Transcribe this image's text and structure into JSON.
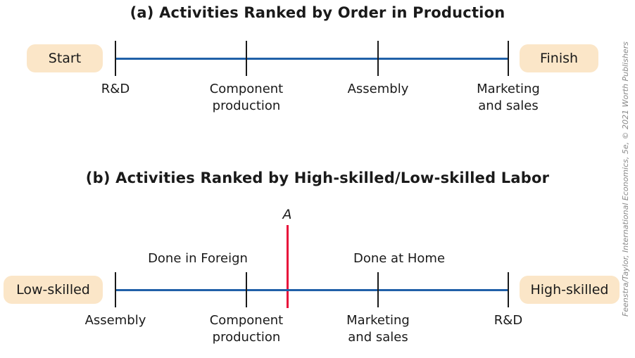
{
  "panel_a": {
    "title": "(a) Activities Ranked by Order in Production",
    "left_pill": "Start",
    "right_pill": "Finish",
    "labels": [
      {
        "line1": "R&D",
        "line2": ""
      },
      {
        "line1": "Component",
        "line2": "production"
      },
      {
        "line1": "Assembly",
        "line2": ""
      },
      {
        "line1": "Marketing",
        "line2": "and sales"
      }
    ]
  },
  "panel_b": {
    "title": "(b) Activities Ranked by High-skilled/Low-skilled Labor",
    "left_pill": "Low-skilled",
    "right_pill": "High-skilled",
    "marker_label": "A",
    "region_left": "Done in Foreign",
    "region_right": "Done at Home",
    "labels": [
      {
        "line1": "Assembly",
        "line2": ""
      },
      {
        "line1": "Component",
        "line2": "production"
      },
      {
        "line1": "Marketing",
        "line2": "and sales"
      },
      {
        "line1": "R&D",
        "line2": ""
      }
    ]
  },
  "credit": "Feenstra/Taylor, International Economics, 5e, © 2021 Worth Publishers",
  "colors": {
    "axis": "#2060a8",
    "marker": "#e8103a",
    "pill": "#fbe6c8"
  }
}
